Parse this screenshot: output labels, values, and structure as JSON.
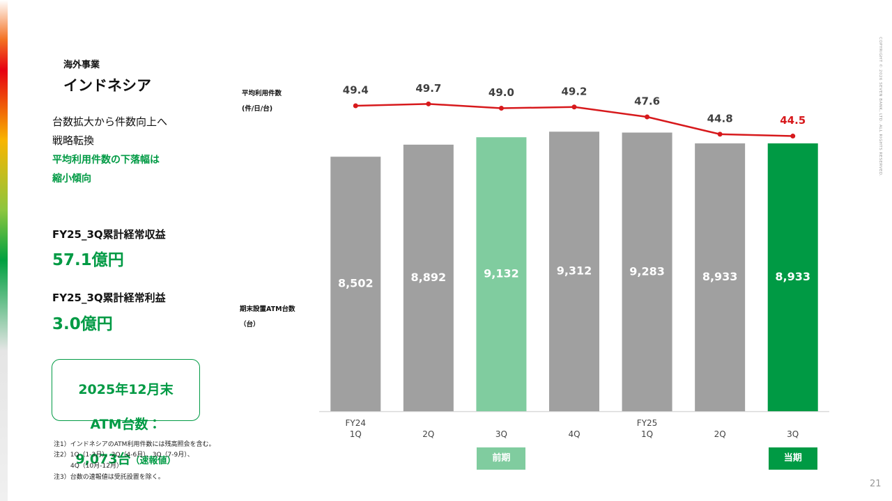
{
  "header": {
    "section": "海外事業",
    "title": "インドネシア"
  },
  "summary": {
    "lines": [
      "台数拡大から件数向上へ",
      "戦略転換"
    ],
    "highlight": [
      "平均利用件数の下落幅は",
      "縮小傾向"
    ]
  },
  "kpis": [
    {
      "label": "FY25_3Q累計経常収益",
      "value": "57.1億円"
    },
    {
      "label": "FY25_3Q累計経常利益",
      "value": "3.0億円"
    }
  ],
  "callout": {
    "lines": [
      "2025年12月末",
      "ATM台数："
    ],
    "value": "9,073台",
    "note": "（速報値）"
  },
  "notes": [
    "注1）インドネシアのATM利用件数には残高照会を含む。",
    "注2）1Q（1-3月）、2Q（4-6月）、3Q（7-9月）、",
    "4Q（10月-12月）",
    "注3）台数の速報値は受託設置を除く。"
  ],
  "copyright": "COPYRIGHT © 2026 SEVEN BANK, LTD. ALL RIGHTS RESERVED.",
  "page_number": "21",
  "chart_data": {
    "type": "bar",
    "categories": [
      "FY24\n1Q",
      "2Q",
      "3Q",
      "4Q",
      "FY25\n1Q",
      "2Q",
      "3Q"
    ],
    "period_tags": [
      null,
      null,
      "前期",
      null,
      null,
      null,
      "当期"
    ],
    "period_tag_colors": [
      null,
      null,
      "#80cc9f",
      null,
      null,
      null,
      "#009a44"
    ],
    "ylim": [
      270,
      10870
    ],
    "y2lim": [
      0,
      53
    ],
    "series": [
      {
        "name": "期末設置ATM台数\n（台）",
        "type": "bar",
        "colors": [
          "#a0a0a0",
          "#a0a0a0",
          "#80cc9f",
          "#a0a0a0",
          "#a0a0a0",
          "#a0a0a0",
          "#009a44"
        ],
        "values": [
          8502,
          8892,
          9132,
          9312,
          9283,
          8933,
          8933
        ],
        "value_labels": [
          "8,502",
          "8,892",
          "9,132",
          "9,312",
          "9,283",
          "8,933",
          "8,933"
        ]
      },
      {
        "name": "平均利用件数\n(件/日/台)",
        "type": "line",
        "axis": "y2",
        "color": "#d7191c",
        "label_colors": [
          "#404040",
          "#404040",
          "#404040",
          "#404040",
          "#404040",
          "#404040",
          "#d7191c"
        ],
        "values": [
          49.4,
          49.7,
          49.0,
          49.2,
          47.6,
          44.8,
          44.5
        ],
        "value_labels": [
          "49.4",
          "49.7",
          "49.0",
          "49.2",
          "47.6",
          "44.8",
          "44.5"
        ]
      }
    ]
  }
}
